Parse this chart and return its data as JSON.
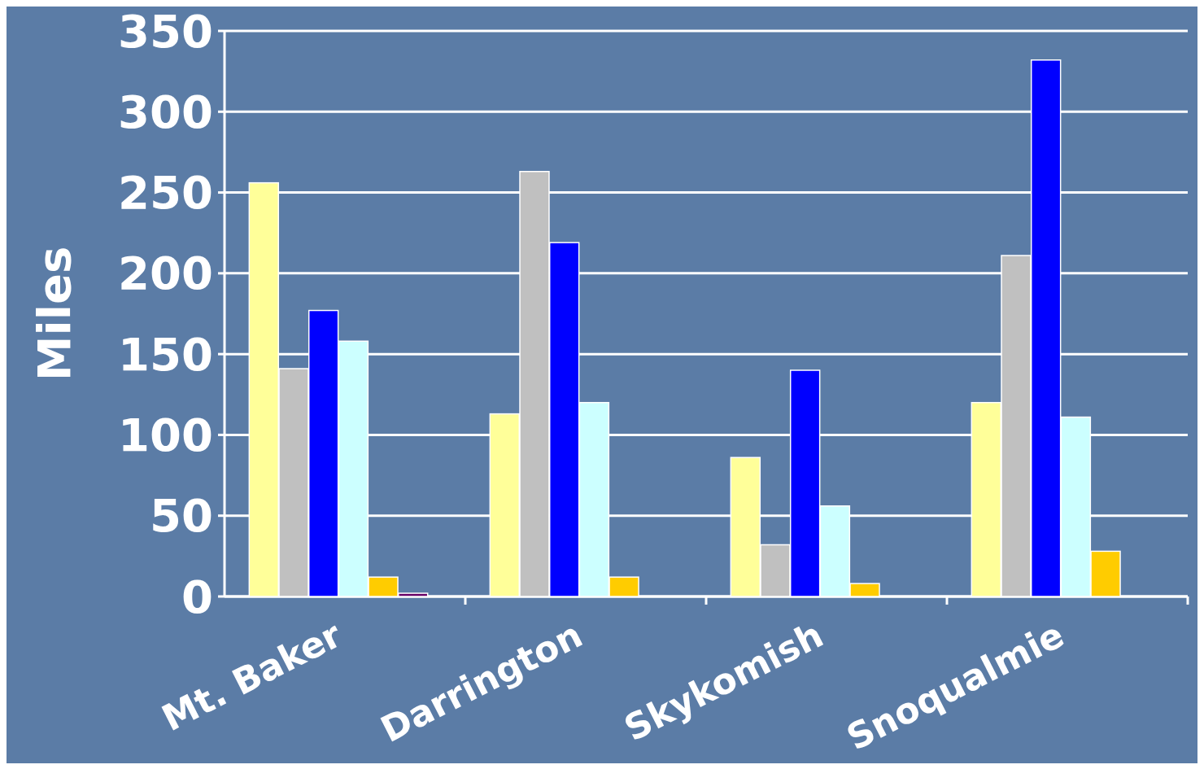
{
  "chart_data": {
    "type": "bar",
    "ylabel": "Miles",
    "categories": [
      "Mt. Baker",
      "Darrington",
      "Skykomish",
      "Snoqualmie"
    ],
    "series": [
      {
        "color": "#ffff99",
        "values": [
          256,
          113,
          86,
          120
        ]
      },
      {
        "color": "#c0c0c0",
        "values": [
          141,
          263,
          32,
          211
        ]
      },
      {
        "color": "#0000ff",
        "values": [
          177,
          219,
          140,
          332
        ]
      },
      {
        "color": "#ccffff",
        "values": [
          158,
          120,
          56,
          111
        ]
      },
      {
        "color": "#ffcc00",
        "values": [
          12,
          12,
          8,
          28
        ]
      },
      {
        "color": "#660066",
        "values": [
          2,
          0,
          0,
          0
        ]
      },
      {
        "color": "#808080",
        "values": [
          0,
          0,
          0,
          0
        ]
      }
    ],
    "ylim": [
      0,
      350
    ],
    "yticks": [
      0,
      50,
      100,
      150,
      200,
      250,
      300,
      350
    ],
    "grid": "y"
  }
}
